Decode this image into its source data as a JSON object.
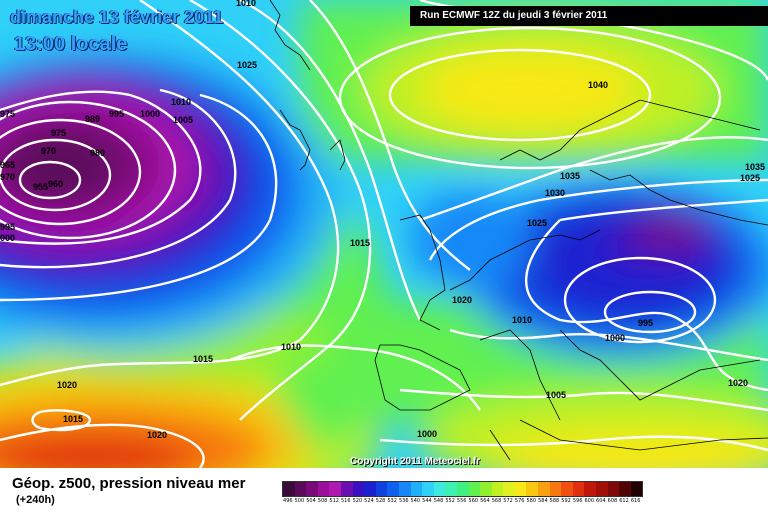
{
  "header": {
    "date_line": "dimanche 13 février 2011",
    "time_line": "13:00 locale",
    "run_info": "Run ECMWF 12Z du jeudi 3 février 2011"
  },
  "footer": {
    "copyright": "Copyright 2011 Meteociel.fr",
    "legend_title": "Géop. z500, pression niveau mer",
    "legend_subtitle": "(+240h)"
  },
  "legend_scale": {
    "labels": [
      "496",
      "500",
      "504",
      "508",
      "512",
      "516",
      "520",
      "524",
      "528",
      "532",
      "536",
      "540",
      "544",
      "548",
      "552",
      "556",
      "560",
      "564",
      "568",
      "572",
      "576",
      "580",
      "584",
      "588",
      "592",
      "596",
      "600",
      "604",
      "608",
      "612",
      "616"
    ],
    "colors": [
      "#3a0a3a",
      "#5a0a5a",
      "#7a0a7a",
      "#9a109a",
      "#b018b0",
      "#6a10b0",
      "#3a10c0",
      "#1a20d0",
      "#1040e0",
      "#1060f0",
      "#1888f8",
      "#20b0f8",
      "#30d0f8",
      "#40e8e0",
      "#40f0b0",
      "#40f080",
      "#60f050",
      "#90f030",
      "#c0f020",
      "#e0f020",
      "#f8e818",
      "#f8c810",
      "#f8a010",
      "#f87810",
      "#f05010",
      "#e03010",
      "#c01808",
      "#a01008",
      "#800808",
      "#500404",
      "#200202"
    ]
  },
  "isobar_labels": [
    {
      "text": "1010"
    },
    {
      "text": "1025"
    },
    {
      "text": "975"
    },
    {
      "text": "975"
    },
    {
      "text": "989"
    },
    {
      "text": "995"
    },
    {
      "text": "1000"
    },
    {
      "text": "1010"
    },
    {
      "text": "1005"
    },
    {
      "text": "970"
    },
    {
      "text": "980"
    },
    {
      "text": "965"
    },
    {
      "text": "960"
    },
    {
      "text": "955"
    },
    {
      "text": "970"
    },
    {
      "text": "995"
    },
    {
      "text": "000"
    },
    {
      "text": "1015"
    },
    {
      "text": "1040"
    },
    {
      "text": "1040"
    },
    {
      "text": "1035"
    },
    {
      "text": "1030"
    },
    {
      "text": "1035"
    },
    {
      "text": "1025"
    },
    {
      "text": "1025"
    },
    {
      "text": "1020"
    },
    {
      "text": "1010"
    },
    {
      "text": "1000"
    },
    {
      "text": "995"
    },
    {
      "text": "1015"
    },
    {
      "text": "1010"
    },
    {
      "text": "1020"
    },
    {
      "text": "1015"
    },
    {
      "text": "1020"
    },
    {
      "text": "1005"
    },
    {
      "text": "1000"
    },
    {
      "text": "1020"
    }
  ]
}
